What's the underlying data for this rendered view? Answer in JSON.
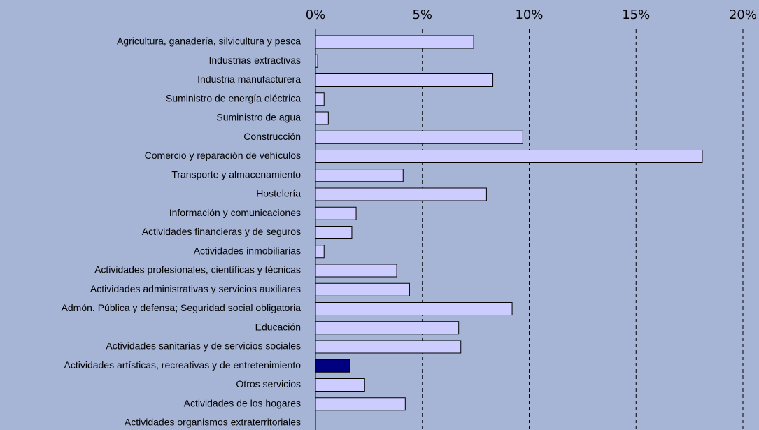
{
  "chart_data": {
    "type": "bar",
    "orientation": "horizontal",
    "categories": [
      "Agricultura, ganadería, silvicultura y pesca",
      "Industrias extractivas",
      "Industria manufacturera",
      "Suministro de energía eléctrica",
      "Suministro de agua",
      "Construcción",
      "Comercio y reparación de vehículos",
      "Transporte y almacenamiento",
      "Hostelería",
      "Información y comunicaciones",
      "Actividades financieras y de seguros",
      "Actividades inmobiliarias",
      "Actividades profesionales, científicas y técnicas",
      "Actividades administrativas y servicios auxiliares",
      "Admón. Pública y defensa; Seguridad social obligatoria",
      "Educación",
      "Actividades sanitarias y de servicios sociales",
      "Actividades artísticas, recreativas y de entretenimiento",
      "Otros servicios",
      "Actividades de los hogares",
      "Actividades organismos extraterritoriales"
    ],
    "values": [
      7.4,
      0.1,
      8.3,
      0.4,
      0.6,
      9.7,
      18.1,
      4.1,
      8.0,
      1.9,
      1.7,
      0.4,
      3.8,
      4.4,
      9.2,
      6.7,
      6.8,
      1.6,
      2.3,
      4.2,
      0
    ],
    "colors": [
      "#ccccff",
      "#ccccff",
      "#ccccff",
      "#ccccff",
      "#ccccff",
      "#ccccff",
      "#ccccff",
      "#ccccff",
      "#ccccff",
      "#ccccff",
      "#ccccff",
      "#ccccff",
      "#ccccff",
      "#ccccff",
      "#ccccff",
      "#ccccff",
      "#ccccff",
      "#000080",
      "#ccccff",
      "#ccccff",
      "#ccccff"
    ],
    "xlim": [
      0,
      20
    ],
    "xticks": [
      {
        "value": 0,
        "label": "0%"
      },
      {
        "value": 5,
        "label": "5%"
      },
      {
        "value": 10,
        "label": "10%"
      },
      {
        "value": 15,
        "label": "15%"
      },
      {
        "value": 20,
        "label": "20%"
      }
    ],
    "grid": true
  }
}
